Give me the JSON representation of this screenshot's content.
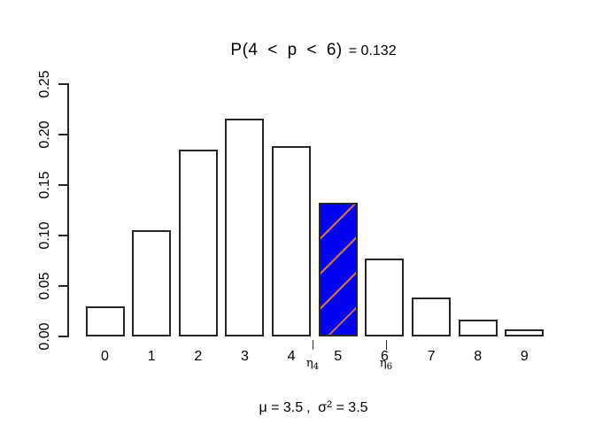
{
  "title": {
    "expression": "P(4 < p < 6)",
    "equals_value": "= 0.132"
  },
  "chart_data": {
    "type": "bar",
    "title": "P(4 < p < 6) = 0.132",
    "categories": [
      "0",
      "1",
      "2",
      "3",
      "4",
      "5",
      "6",
      "7",
      "8",
      "9"
    ],
    "values": [
      0.0302,
      0.1057,
      0.185,
      0.2158,
      0.1888,
      0.1322,
      0.0771,
      0.0385,
      0.0169,
      0.0066
    ],
    "ylim": [
      0,
      0.25
    ],
    "y_ticks": [
      "0.00",
      "0.05",
      "0.10",
      "0.15",
      "0.20",
      "0.25"
    ],
    "xlabel": "",
    "ylabel": "",
    "grid": false,
    "legend": "none",
    "bar_fill": "#ffffff",
    "bar_border": "#262626",
    "highlight": {
      "category": "5",
      "fill": "#0202f2",
      "hatch_color": "#d4763b",
      "hatch_angle_deg": 45
    }
  },
  "markers": [
    {
      "base": "η",
      "sub": "4"
    },
    {
      "base": "η",
      "sub": "6"
    }
  ],
  "footer": {
    "mu": "μ = 3.5",
    "separator": ",",
    "sigma_base": "σ",
    "sigma_exponent": "2",
    "sigma_value": "= 3.5"
  }
}
